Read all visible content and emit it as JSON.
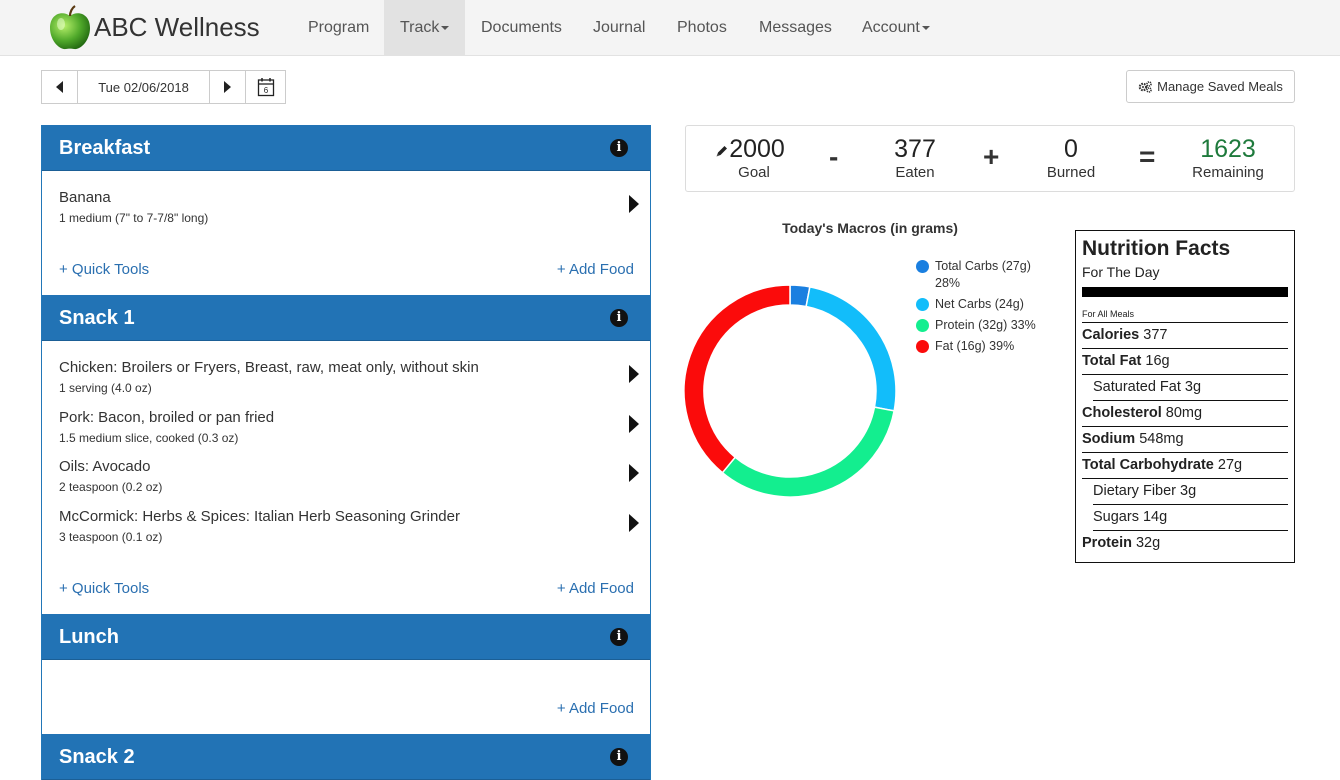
{
  "brand": {
    "name": "ABC Wellness"
  },
  "nav": {
    "program": "Program",
    "track": "Track",
    "documents": "Documents",
    "journal": "Journal",
    "photos": "Photos",
    "messages": "Messages",
    "account": "Account"
  },
  "date": {
    "value": "Tue 02/06/2018",
    "calendar_day": "6"
  },
  "manage_meals": "Manage Saved Meals",
  "meals": {
    "breakfast": {
      "title": "Breakfast",
      "items": [
        {
          "name": "Banana",
          "serving": "1 medium (7\" to 7-7/8\" long)"
        }
      ],
      "quick_tools": "+ Quick Tools",
      "add_food": "+ Add Food"
    },
    "snack1": {
      "title": "Snack 1",
      "items": [
        {
          "name": "Chicken: Broilers or Fryers, Breast, raw, meat only, without skin",
          "serving": "1 serving (4.0 oz)"
        },
        {
          "name": "Pork: Bacon, broiled or pan fried",
          "serving": "1.5 medium slice, cooked (0.3 oz)"
        },
        {
          "name": "Oils: Avocado",
          "serving": "2 teaspoon (0.2 oz)"
        },
        {
          "name": "McCormick: Herbs & Spices: Italian Herb Seasoning Grinder",
          "serving": "3 teaspoon (0.1 oz)"
        }
      ],
      "quick_tools": "+ Quick Tools",
      "add_food": "+ Add Food"
    },
    "lunch": {
      "title": "Lunch",
      "add_food": "+ Add Food"
    },
    "snack2": {
      "title": "Snack 2"
    }
  },
  "summary": {
    "goal_value": "2000",
    "goal_label": "Goal",
    "minus": "-",
    "eaten_value": "377",
    "eaten_label": "Eaten",
    "plus": "+",
    "burned_value": "0",
    "burned_label": "Burned",
    "equals": "=",
    "remaining_value": "1623",
    "remaining_label": "Remaining"
  },
  "chart_data": {
    "type": "pie",
    "title": "Today's Macros (in grams)",
    "series": [
      {
        "name": "Total Carbs (27g) 28%",
        "value": 3,
        "color": "#1a7fe0"
      },
      {
        "name": "Net Carbs (24g)",
        "value": 25,
        "color": "#12bdfa"
      },
      {
        "name": "Protein (32g) 33%",
        "value": 33,
        "color": "#13ee8f"
      },
      {
        "name": "Fat (16g) 39%",
        "value": 39,
        "color": "#fb0b0b"
      }
    ],
    "legend": "right"
  },
  "nutrition": {
    "title": "Nutrition Facts",
    "subtitle": "For The Day",
    "for_all": "For All Meals",
    "calories_label": "Calories",
    "calories_value": "377",
    "fat_label": "Total Fat",
    "fat_value": "16g",
    "satfat_label": "Saturated Fat",
    "satfat_value": "3g",
    "chol_label": "Cholesterol",
    "chol_value": "80mg",
    "sodium_label": "Sodium",
    "sodium_value": "548mg",
    "carb_label": "Total Carbohydrate",
    "carb_value": "27g",
    "fiber_label": "Dietary Fiber",
    "fiber_value": "3g",
    "sugars_label": "Sugars",
    "sugars_value": "14g",
    "protein_label": "Protein",
    "protein_value": "32g"
  }
}
